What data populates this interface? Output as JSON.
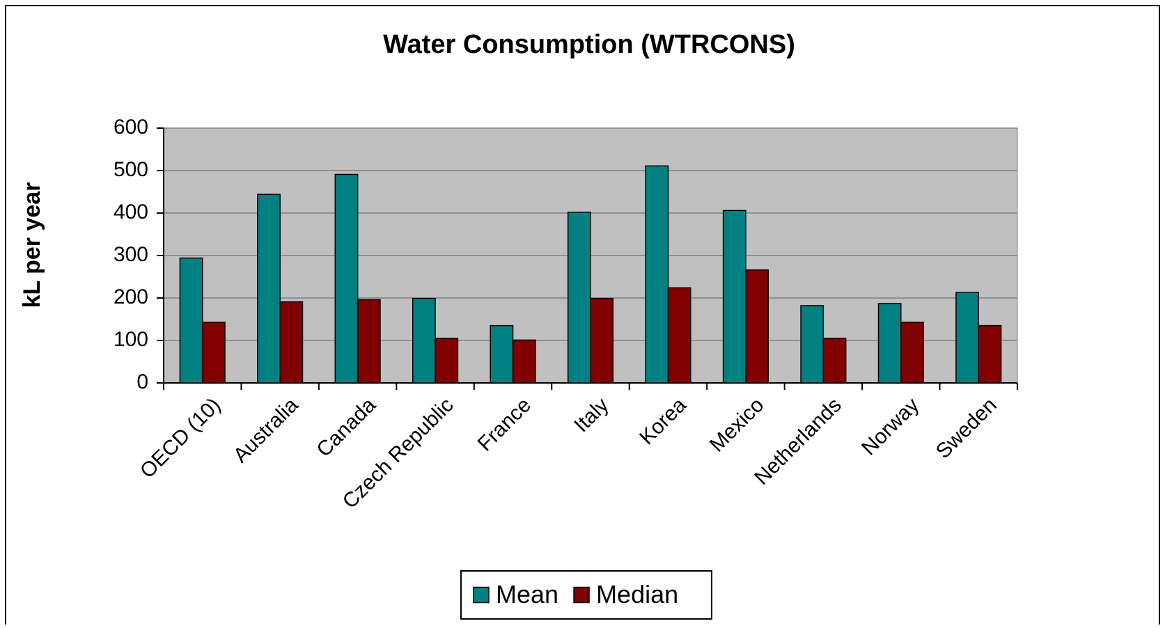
{
  "chart_data": {
    "type": "bar",
    "title": "Water Consumption (WTRCONS)",
    "y_label": "kL per year",
    "categories": [
      "OECD (10)",
      "Australia",
      "Canada",
      "Czech Republic",
      "France",
      "Italy",
      "Korea",
      "Mexico",
      "Netherlands",
      "Norway",
      "Sweden"
    ],
    "series": [
      {
        "name": "Mean",
        "color": "#008080",
        "values": [
          294,
          444,
          491,
          199,
          135,
          402,
          511,
          406,
          182,
          187,
          213
        ]
      },
      {
        "name": "Median",
        "color": "#800000",
        "values": [
          143,
          191,
          196,
          105,
          101,
          199,
          224,
          266,
          105,
          143,
          135
        ]
      }
    ],
    "ylim": [
      0,
      600
    ],
    "yticks": [
      0,
      100,
      200,
      300,
      400,
      500,
      600
    ],
    "grid": true,
    "legend": "bottom",
    "plot_background": "#c0c0c0"
  }
}
